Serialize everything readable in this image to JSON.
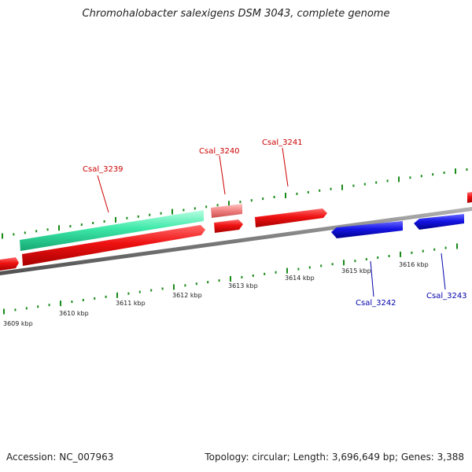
{
  "title": "Chromohalobacter salexigens DSM 3043, complete genome",
  "footer": {
    "accession": "Accession: NC_007963",
    "stats": "Topology: circular; Length: 3,696,649 bp; Genes: 3,388"
  },
  "colors": {
    "forward_gene": "#e8101a",
    "reverse_gene": "#1a1ae6",
    "highlight_gene": "#3de8a8",
    "pseudo_gene": "#f08080",
    "backbone": "#808080",
    "tick": "#1a8a1a",
    "forward_label": "#cc0000",
    "reverse_label": "#0000aa"
  },
  "scale": {
    "ticks": [
      "3609 kbp",
      "3610 kbp",
      "3611 kbp",
      "3612 kbp",
      "3613 kbp",
      "3614 kbp",
      "3615 kbp",
      "3616 kbp"
    ]
  },
  "genes": {
    "labels": [
      "Csal_3239",
      "Csal_3240",
      "Csal_3241",
      "Csal_3242",
      "Csal_3243"
    ]
  }
}
